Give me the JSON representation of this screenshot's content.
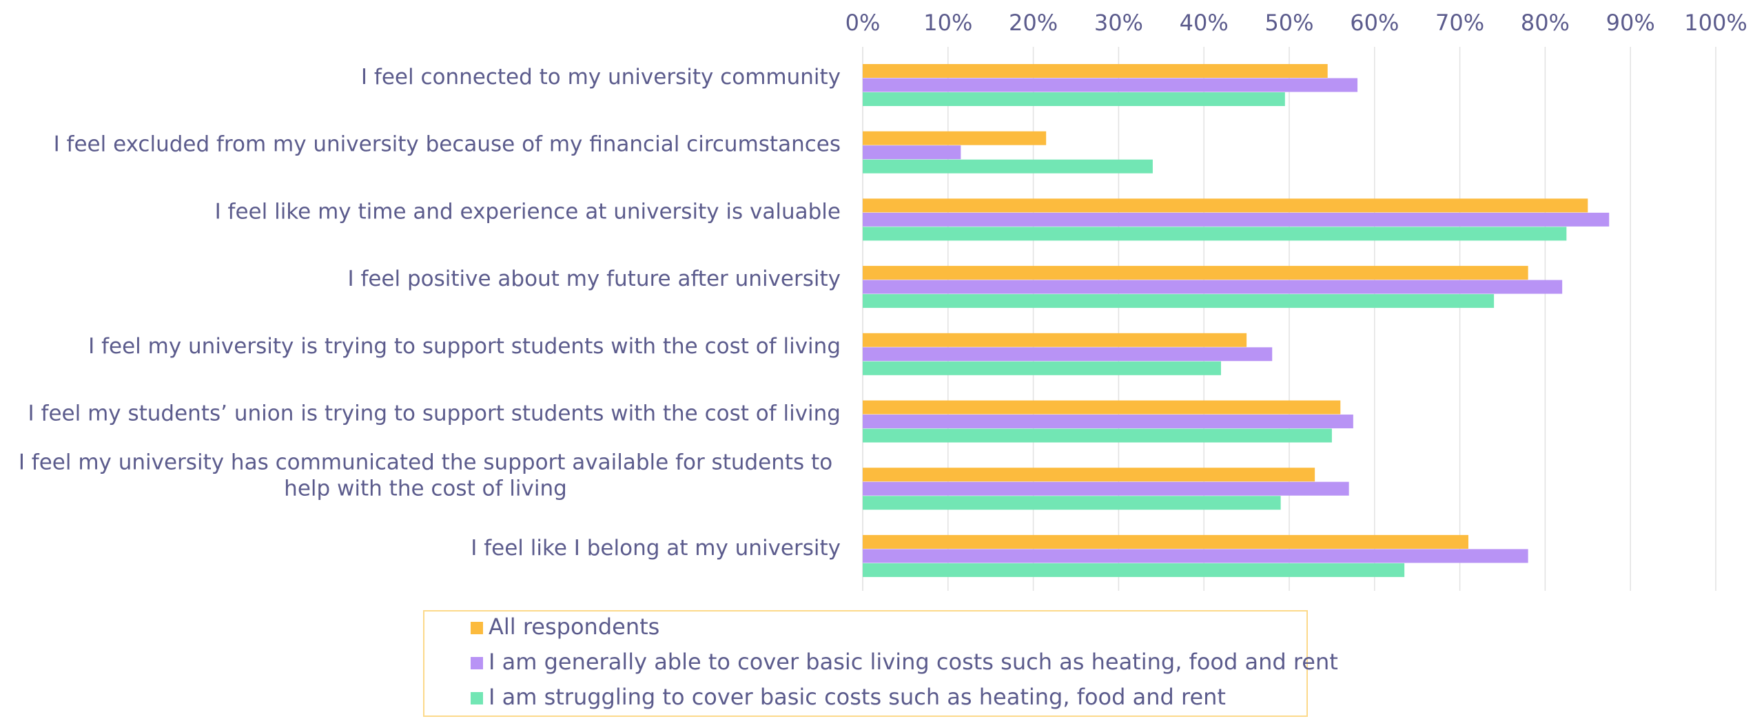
{
  "chart_data": {
    "type": "bar",
    "orientation": "horizontal",
    "title": "",
    "xlabel": "",
    "ylabel": "",
    "xlim": [
      0,
      100
    ],
    "x_ticks": [
      "0%",
      "10%",
      "20%",
      "30%",
      "40%",
      "50%",
      "60%",
      "70%",
      "80%",
      "90%",
      "100%"
    ],
    "x_axis_position": "top",
    "grid": true,
    "legend_position": "bottom",
    "categories": [
      "I feel connected to my university community",
      "I feel excluded from my university because of my financial circumstances",
      "I feel like my time and experience at university is valuable",
      "I feel positive about my future after university",
      "I feel my university is trying to support students with the cost of living",
      "I feel my students’ union is trying to support students with the cost of living",
      "I feel my university has communicated the support available for students to help with the cost of living",
      "I feel like I belong at my university"
    ],
    "series": [
      {
        "name": "All respondents",
        "color": "#fcbb3e",
        "values": [
          54.5,
          21.5,
          85,
          78,
          45,
          56,
          53,
          71
        ]
      },
      {
        "name": "I am generally able to cover basic living costs such as heating, food and rent",
        "color": "#b893f5",
        "values": [
          58,
          11.5,
          87.5,
          82,
          48,
          57.5,
          57,
          78
        ]
      },
      {
        "name": "I am struggling to cover basic costs such as heating, food and rent",
        "color": "#72e6b4",
        "values": [
          49.5,
          34,
          82.5,
          74,
          42,
          55,
          49,
          63.5
        ]
      }
    ]
  },
  "colors": {
    "text": "#5b5b8c",
    "grid": "#e2e2e2",
    "legend_border": "#fcd98a"
  }
}
